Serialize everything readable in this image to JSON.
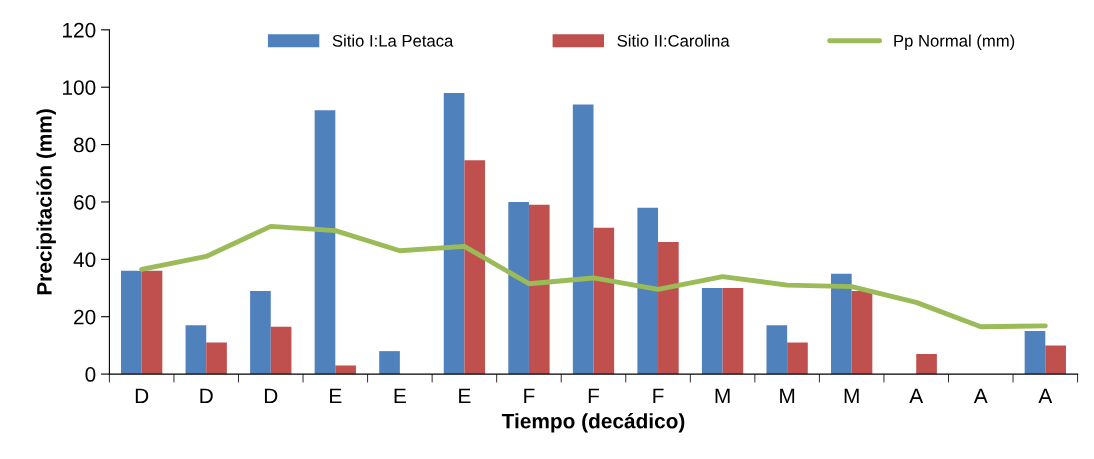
{
  "chart_data": {
    "type": "bar",
    "xlabel": "Tiempo (decádico)",
    "ylabel": "Precipitación (mm)",
    "categories": [
      "D",
      "D",
      "D",
      "E",
      "E",
      "E",
      "F",
      "F",
      "F",
      "M",
      "M",
      "M",
      "A",
      "A",
      "A"
    ],
    "series": [
      {
        "name": "Sitio I:La Petaca",
        "color": "#4f81bd",
        "values": [
          36,
          17,
          29,
          92,
          8,
          98,
          60,
          94,
          58,
          30,
          17,
          35,
          null,
          null,
          15
        ]
      },
      {
        "name": "Sitio II:Carolina",
        "color": "#c0504d",
        "values": [
          36,
          11,
          16.5,
          3,
          null,
          74.5,
          59,
          51,
          46,
          30,
          11,
          29,
          7,
          null,
          10
        ]
      },
      {
        "name": "Pp Normal (mm)",
        "type": "line",
        "color": "#9bbb59",
        "values": [
          36.5,
          41,
          51.5,
          50,
          43,
          44.5,
          31.5,
          33.5,
          29.5,
          34,
          31,
          30.5,
          25,
          16.5,
          16.8
        ]
      }
    ],
    "ylim": [
      0,
      120
    ],
    "yticks": [
      0,
      20,
      40,
      60,
      80,
      100,
      120
    ],
    "grid": false,
    "legend": "top",
    "marker": "none",
    "line_style": "solid"
  }
}
